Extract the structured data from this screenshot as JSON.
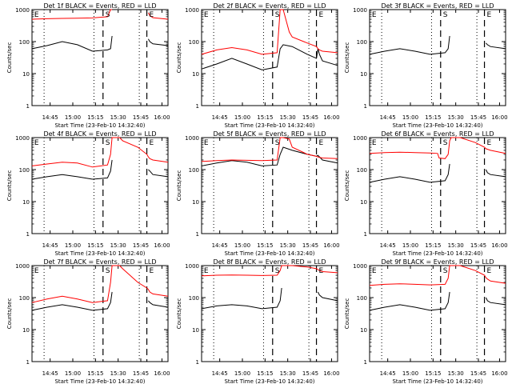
{
  "chart_data": [
    {
      "type": "line",
      "title": "Det 1f BLACK = Events, RED = LLD",
      "xlabel": "Start Time (23-Feb-10 14:32:40)",
      "ylabel": "Counts/sec",
      "ylim": [
        1,
        1000
      ],
      "yscale": "log",
      "ytick_labels": [
        "1",
        "10",
        "100",
        "1000"
      ],
      "x_tick_labels": [
        "14:45",
        "15:00",
        "15:15",
        "15:30",
        "15:45",
        "16:00"
      ],
      "markers": [
        "E",
        "S",
        "E"
      ],
      "series": [
        {
          "color": "#000000",
          "x": [
            0,
            10,
            20,
            30,
            40,
            50,
            52,
            53,
            54,
            58,
            60,
            70,
            76,
            77,
            78,
            80,
            90
          ],
          "y": [
            60,
            75,
            100,
            80,
            50,
            55,
            60,
            150,
            null,
            null,
            null,
            null,
            null,
            120,
            100,
            85,
            75
          ]
        },
        {
          "color": "#ff0000",
          "x": [
            0,
            10,
            20,
            30,
            40,
            50,
            52,
            53,
            54,
            58,
            60,
            70,
            76,
            77,
            78,
            80,
            90
          ],
          "y": [
            500,
            520,
            530,
            540,
            550,
            600,
            1000,
            1000,
            null,
            null,
            null,
            null,
            null,
            800,
            650,
            560,
            500
          ]
        }
      ]
    },
    {
      "type": "line",
      "title": "Det 2f BLACK = Events, RED = LLD",
      "xlabel": "Start Time (23-Feb-10 14:32:40)",
      "ylabel": "Counts/sec",
      "ylim": [
        1,
        1000
      ],
      "yscale": "log",
      "ytick_labels": [
        "1",
        "10",
        "100",
        "1000"
      ],
      "x_tick_labels": [
        "14:45",
        "15:00",
        "15:15",
        "15:30",
        "15:45",
        "16:00"
      ],
      "markers": [
        "E",
        "S",
        "E"
      ],
      "series": [
        {
          "color": "#000000",
          "x": [
            0,
            10,
            20,
            30,
            40,
            50,
            52,
            54,
            60,
            70,
            76,
            77,
            78,
            80,
            90
          ],
          "y": [
            14,
            20,
            30,
            20,
            13,
            16,
            60,
            80,
            70,
            40,
            30,
            60,
            40,
            25,
            18
          ]
        },
        {
          "color": "#ff0000",
          "x": [
            0,
            10,
            20,
            30,
            40,
            50,
            52,
            54,
            58,
            60,
            70,
            76,
            77,
            78,
            80,
            90
          ],
          "y": [
            40,
            55,
            65,
            55,
            40,
            45,
            1000,
            1000,
            200,
            140,
            90,
            70,
            60,
            55,
            50,
            45
          ]
        }
      ]
    },
    {
      "type": "line",
      "title": "Det 3f BLACK = Events, RED = LLD",
      "xlabel": "Start Time (23-Feb-10 14:32:40)",
      "ylabel": "Counts/sec",
      "ylim": [
        1,
        1000
      ],
      "yscale": "log",
      "ytick_labels": [
        "1",
        "10",
        "100",
        "1000"
      ],
      "x_tick_labels": [
        "14:45",
        "15:00",
        "15:15",
        "15:30",
        "15:45",
        "16:00"
      ],
      "markers": [
        "E",
        "S",
        "E"
      ],
      "series": [
        {
          "color": "#000000",
          "x": [
            0,
            10,
            20,
            30,
            40,
            50,
            52,
            53,
            54,
            76,
            77,
            78,
            80,
            90
          ],
          "y": [
            40,
            50,
            60,
            50,
            40,
            45,
            60,
            150,
            null,
            null,
            90,
            80,
            70,
            60
          ]
        }
      ]
    },
    {
      "type": "line",
      "title": "Det 4f BLACK = Events, RED = LLD",
      "xlabel": "Start Time (23-Feb-10 14:32:40)",
      "ylabel": "Counts/sec",
      "ylim": [
        1,
        1000
      ],
      "yscale": "log",
      "ytick_labels": [
        "1",
        "10",
        "100",
        "1000"
      ],
      "x_tick_labels": [
        "14:45",
        "15:00",
        "15:15",
        "15:30",
        "15:45",
        "16:00"
      ],
      "markers": [
        "E",
        "S",
        "E"
      ],
      "series": [
        {
          "color": "#000000",
          "x": [
            0,
            10,
            20,
            30,
            40,
            50,
            52,
            53,
            54,
            76,
            77,
            78,
            80,
            90
          ],
          "y": [
            50,
            60,
            70,
            60,
            50,
            55,
            90,
            200,
            null,
            null,
            100,
            90,
            70,
            60
          ]
        },
        {
          "color": "#ff0000",
          "x": [
            0,
            10,
            20,
            30,
            40,
            50,
            52,
            53,
            54,
            58,
            60,
            70,
            76,
            77,
            78,
            80,
            90
          ],
          "y": [
            130,
            150,
            170,
            160,
            120,
            140,
            300,
            1000,
            1000,
            1000,
            800,
            500,
            300,
            250,
            220,
            200,
            170
          ]
        }
      ]
    },
    {
      "type": "line",
      "title": "Det 5f BLACK = Events, RED = LLD",
      "xlabel": "Start Time (23-Feb-10 14:32:40)",
      "ylabel": "Counts/sec",
      "ylim": [
        1,
        1000
      ],
      "yscale": "log",
      "ytick_labels": [
        "1",
        "10",
        "100",
        "1000"
      ],
      "x_tick_labels": [
        "14:45",
        "15:00",
        "15:15",
        "15:30",
        "15:45",
        "16:00"
      ],
      "markers": [
        "E",
        "S",
        "E"
      ],
      "series": [
        {
          "color": "#000000",
          "x": [
            0,
            10,
            20,
            30,
            40,
            50,
            52,
            54,
            60,
            70,
            76,
            77,
            78,
            80,
            90
          ],
          "y": [
            130,
            160,
            190,
            170,
            130,
            140,
            300,
            500,
            400,
            300,
            260,
            280,
            250,
            200,
            160
          ]
        },
        {
          "color": "#ff0000",
          "x": [
            0,
            10,
            20,
            30,
            40,
            50,
            52,
            54,
            58,
            60,
            70,
            76,
            77,
            78,
            80,
            90
          ],
          "y": [
            180,
            190,
            200,
            195,
            190,
            200,
            1000,
            1000,
            900,
            500,
            300,
            260,
            250,
            240,
            230,
            220
          ]
        }
      ]
    },
    {
      "type": "line",
      "title": "Det 6f BLACK = Events, RED = LLD",
      "xlabel": "Start Time (23-Feb-10 14:32:40)",
      "ylabel": "Counts/sec",
      "ylim": [
        1,
        1000
      ],
      "yscale": "log",
      "ytick_labels": [
        "1",
        "10",
        "100",
        "1000"
      ],
      "x_tick_labels": [
        "14:45",
        "15:00",
        "15:15",
        "15:30",
        "15:45",
        "16:00"
      ],
      "markers": [
        "E",
        "S",
        "E"
      ],
      "series": [
        {
          "color": "#000000",
          "x": [
            0,
            10,
            20,
            30,
            40,
            50,
            52,
            53,
            54,
            76,
            77,
            78,
            80,
            90
          ],
          "y": [
            40,
            50,
            60,
            50,
            40,
            45,
            70,
            150,
            null,
            null,
            100,
            80,
            70,
            60
          ]
        },
        {
          "color": "#ff0000",
          "x": [
            0,
            10,
            20,
            30,
            40,
            45,
            46,
            50,
            52,
            53,
            54,
            58,
            60,
            70,
            76,
            77,
            80,
            90
          ],
          "y": [
            320,
            340,
            350,
            340,
            330,
            320,
            230,
            220,
            300,
            800,
            1000,
            1000,
            1000,
            700,
            500,
            450,
            400,
            320
          ]
        }
      ]
    },
    {
      "type": "line",
      "title": "Det 7f BLACK = Events, RED = LLD",
      "xlabel": "Start Time (23-Feb-10 14:32:40)",
      "ylabel": "Counts/sec",
      "ylim": [
        1,
        1000
      ],
      "yscale": "log",
      "ytick_labels": [
        "1",
        "10",
        "100",
        "1000"
      ],
      "x_tick_labels": [
        "14:45",
        "15:00",
        "15:15",
        "15:30",
        "15:45",
        "16:00"
      ],
      "markers": [
        "E",
        "S",
        "E"
      ],
      "series": [
        {
          "color": "#000000",
          "x": [
            0,
            10,
            20,
            30,
            40,
            50,
            52,
            53,
            54,
            76,
            77,
            78,
            80,
            90
          ],
          "y": [
            40,
            50,
            60,
            50,
            40,
            45,
            70,
            150,
            null,
            null,
            80,
            70,
            60,
            50
          ]
        },
        {
          "color": "#ff0000",
          "x": [
            0,
            10,
            20,
            30,
            40,
            50,
            52,
            53,
            54,
            58,
            60,
            70,
            76,
            77,
            78,
            80,
            90
          ],
          "y": [
            70,
            90,
            110,
            90,
            70,
            80,
            300,
            1000,
            1000,
            1000,
            800,
            300,
            200,
            180,
            150,
            130,
            110
          ]
        }
      ]
    },
    {
      "type": "line",
      "title": "Det 8f BLACK = Events, RED = LLD",
      "xlabel": "Start Time (23-Feb-10 14:32:40)",
      "ylabel": "Counts/sec",
      "ylim": [
        1,
        1000
      ],
      "yscale": "log",
      "ytick_labels": [
        "1",
        "10",
        "100",
        "1000"
      ],
      "x_tick_labels": [
        "14:45",
        "15:00",
        "15:15",
        "15:30",
        "15:45",
        "16:00"
      ],
      "markers": [
        "E",
        "S",
        "E"
      ],
      "series": [
        {
          "color": "#000000",
          "x": [
            0,
            10,
            20,
            30,
            40,
            50,
            52,
            53,
            54,
            76,
            77,
            78,
            80,
            90
          ],
          "y": [
            45,
            55,
            60,
            55,
            45,
            50,
            80,
            200,
            null,
            null,
            150,
            120,
            100,
            80
          ]
        },
        {
          "color": "#ff0000",
          "x": [
            0,
            10,
            20,
            30,
            40,
            50,
            52,
            53,
            54,
            58,
            60,
            70,
            76,
            77,
            78,
            80,
            90
          ],
          "y": [
            480,
            500,
            510,
            500,
            490,
            500,
            700,
            1000,
            1000,
            1000,
            1000,
            900,
            800,
            750,
            700,
            650,
            600
          ]
        }
      ]
    },
    {
      "type": "line",
      "title": "Det 9f BLACK = Events, RED = LLD",
      "xlabel": "Start Time (23-Feb-10 14:32:40)",
      "ylabel": "Counts/sec",
      "ylim": [
        1,
        1000
      ],
      "yscale": "log",
      "ytick_labels": [
        "1",
        "10",
        "100",
        "1000"
      ],
      "x_tick_labels": [
        "14:45",
        "15:00",
        "15:15",
        "15:30",
        "15:45",
        "16:00"
      ],
      "markers": [
        "E",
        "S",
        "E"
      ],
      "series": [
        {
          "color": "#000000",
          "x": [
            0,
            10,
            20,
            30,
            40,
            50,
            52,
            53,
            54,
            76,
            77,
            78,
            80,
            90
          ],
          "y": [
            40,
            50,
            60,
            50,
            40,
            45,
            70,
            150,
            null,
            null,
            100,
            80,
            70,
            60
          ]
        },
        {
          "color": "#ff0000",
          "x": [
            0,
            10,
            20,
            30,
            40,
            50,
            52,
            53,
            54,
            58,
            60,
            70,
            76,
            77,
            78,
            80,
            90
          ],
          "y": [
            240,
            260,
            270,
            260,
            250,
            260,
            400,
            1000,
            1000,
            1000,
            1000,
            700,
            500,
            420,
            380,
            330,
            280
          ]
        }
      ]
    }
  ]
}
